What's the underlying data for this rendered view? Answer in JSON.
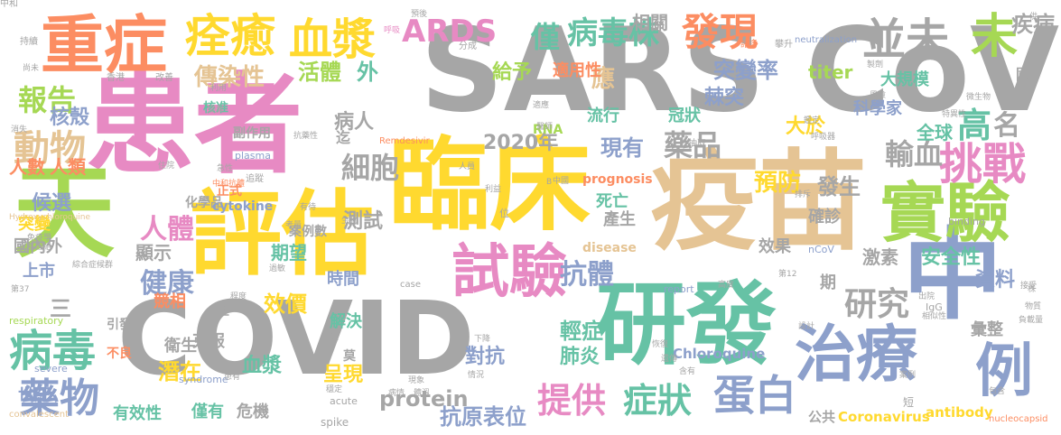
{
  "colors": {
    "gray": "#a6a6a6",
    "pink": "#e78ac3",
    "green": "#66c2a5",
    "blue": "#8da0cb",
    "yellow": "#ffd92f",
    "tan": "#e5c494",
    "lime": "#a6d854",
    "orange": "#fc8d62"
  },
  "words": [
    {
      "text": "SARS CoV",
      "color": "gray"
    },
    {
      "text": "患者",
      "color": "pink"
    },
    {
      "text": "疫苗",
      "color": "tan"
    },
    {
      "text": "臨床",
      "color": "yellow"
    },
    {
      "text": "COVID",
      "color": "gray"
    },
    {
      "text": "評估",
      "color": "yellow"
    },
    {
      "text": "研發",
      "color": "green"
    },
    {
      "text": "重症",
      "color": "orange"
    },
    {
      "text": "天",
      "color": "lime"
    },
    {
      "text": "中",
      "color": "blue"
    },
    {
      "text": "試驗",
      "color": "pink"
    },
    {
      "text": "治療",
      "color": "blue"
    },
    {
      "text": "實驗",
      "color": "lime"
    },
    {
      "text": "例",
      "color": "blue"
    },
    {
      "text": "痊癒",
      "color": "yellow"
    },
    {
      "text": "血漿",
      "color": "yellow"
    },
    {
      "text": "並未",
      "color": "gray"
    },
    {
      "text": "ARDS",
      "color": "pink"
    },
    {
      "text": "病毒株",
      "color": "green"
    },
    {
      "text": "發現",
      "color": "orange"
    },
    {
      "text": "未",
      "color": "lime"
    },
    {
      "text": "挑戰",
      "color": "pink"
    },
    {
      "text": "病毒",
      "color": "green"
    },
    {
      "text": "藥物",
      "color": "blue"
    },
    {
      "text": "提供",
      "color": "pink"
    },
    {
      "text": "症狀",
      "color": "green"
    },
    {
      "text": "蛋白",
      "color": "blue"
    },
    {
      "text": "報告",
      "color": "lime"
    },
    {
      "text": "動物",
      "color": "tan"
    },
    {
      "text": "人體",
      "color": "pink"
    },
    {
      "text": "健康",
      "color": "blue"
    },
    {
      "text": "抗體",
      "color": "blue"
    },
    {
      "text": "研究",
      "color": "gray"
    },
    {
      "text": "細胞",
      "color": "gray"
    },
    {
      "text": "藥品",
      "color": "gray"
    },
    {
      "text": "輸血",
      "color": "gray"
    },
    {
      "text": "預防",
      "color": "yellow"
    },
    {
      "text": "高",
      "color": "green"
    },
    {
      "text": "僅",
      "color": "green"
    },
    {
      "text": "傳染性",
      "color": "tan"
    },
    {
      "text": "活體",
      "color": "lime"
    },
    {
      "text": "外",
      "color": "green"
    },
    {
      "text": "給予",
      "color": "lime"
    },
    {
      "text": "相關",
      "color": "gray"
    },
    {
      "text": "titer",
      "color": "lime"
    },
    {
      "text": "疾病",
      "color": "gray"
    },
    {
      "text": "應",
      "color": "tan"
    },
    {
      "text": "突變率",
      "color": "blue"
    },
    {
      "text": "棘突",
      "color": "blue"
    },
    {
      "text": "大規模",
      "color": "green"
    },
    {
      "text": "科學家",
      "color": "blue"
    },
    {
      "text": "大於",
      "color": "yellow"
    },
    {
      "text": "名",
      "color": "gray"
    },
    {
      "text": "發生",
      "color": "gray"
    },
    {
      "text": "核殼",
      "color": "blue"
    },
    {
      "text": "2020年",
      "color": "gray"
    },
    {
      "text": "現有",
      "color": "blue"
    },
    {
      "text": "流行",
      "color": "green"
    },
    {
      "text": "冠狀",
      "color": "green"
    },
    {
      "text": "全球",
      "color": "green"
    },
    {
      "text": "病人",
      "color": "gray"
    },
    {
      "text": "人類",
      "color": "orange"
    },
    {
      "text": "人數",
      "color": "orange"
    },
    {
      "text": "候選",
      "color": "blue"
    },
    {
      "text": "突變",
      "color": "yellow"
    },
    {
      "text": "測試",
      "color": "gray"
    },
    {
      "text": "確診",
      "color": "gray"
    },
    {
      "text": "死亡",
      "color": "green"
    },
    {
      "text": "安全性",
      "color": "green"
    },
    {
      "text": "資料",
      "color": "blue"
    },
    {
      "text": "激素",
      "color": "gray"
    },
    {
      "text": "效果",
      "color": "gray"
    },
    {
      "text": "時間",
      "color": "blue"
    },
    {
      "text": "期望",
      "color": "green"
    },
    {
      "text": "效價",
      "color": "yellow"
    },
    {
      "text": "顯示",
      "color": "gray"
    },
    {
      "text": "競相",
      "color": "orange"
    },
    {
      "text": "上市",
      "color": "blue"
    },
    {
      "text": "國內外",
      "color": "gray"
    },
    {
      "text": "三",
      "color": "gray"
    },
    {
      "text": "解決",
      "color": "green"
    },
    {
      "text": "輕症",
      "color": "green"
    },
    {
      "text": "對抗",
      "color": "blue"
    },
    {
      "text": "肺炎",
      "color": "green"
    },
    {
      "text": "潛在",
      "color": "yellow"
    },
    {
      "text": "衛生",
      "color": "gray"
    },
    {
      "text": "克服",
      "color": "gray"
    },
    {
      "text": "呈現",
      "color": "yellow"
    },
    {
      "text": "血漿",
      "color": "green"
    },
    {
      "text": "protein",
      "color": "gray"
    },
    {
      "text": "抗原表位",
      "color": "blue"
    },
    {
      "text": "有效性",
      "color": "green"
    },
    {
      "text": "僅有",
      "color": "green"
    },
    {
      "text": "危機",
      "color": "gray"
    },
    {
      "text": "世紀",
      "color": "blue"
    },
    {
      "text": "Coronavirus",
      "color": "yellow"
    },
    {
      "text": "antibody",
      "color": "yellow"
    },
    {
      "text": "公共",
      "color": "gray"
    },
    {
      "text": "彙整",
      "color": "gray"
    },
    {
      "text": "Chloroquine",
      "color": "blue"
    },
    {
      "text": "化學品",
      "color": "gray"
    },
    {
      "text": "cytokine",
      "color": "blue"
    },
    {
      "text": "正式",
      "color": "orange"
    },
    {
      "text": "副作用",
      "color": "gray"
    },
    {
      "text": "核准",
      "color": "green"
    },
    {
      "text": "Remdesivir",
      "color": "orange"
    },
    {
      "text": "plasma",
      "color": "blue"
    },
    {
      "text": "prognosis",
      "color": "orange"
    },
    {
      "text": "disease",
      "color": "tan"
    },
    {
      "text": "nCoV",
      "color": "blue"
    },
    {
      "text": "report",
      "color": "blue"
    },
    {
      "text": "syndrome",
      "color": "blue"
    },
    {
      "text": "acute",
      "color": "gray"
    },
    {
      "text": "binding",
      "color": "gray"
    },
    {
      "text": "IgG",
      "color": "gray"
    },
    {
      "text": "case",
      "color": "gray"
    },
    {
      "text": "spike",
      "color": "gray"
    },
    {
      "text": "severe",
      "color": "blue"
    },
    {
      "text": "convalescent",
      "color": "tan"
    },
    {
      "text": "Hydroxychloroquine",
      "color": "tan"
    },
    {
      "text": "nucleocapsid",
      "color": "orange"
    },
    {
      "text": "neutralization",
      "color": "blue"
    },
    {
      "text": "respiratory",
      "color": "lime"
    },
    {
      "text": "RNA",
      "color": "lime"
    },
    {
      "text": "引發",
      "color": "gray"
    },
    {
      "text": "不良",
      "color": "orange"
    },
    {
      "text": "程度",
      "color": "gray"
    },
    {
      "text": "抽取",
      "color": "gray"
    },
    {
      "text": "分成",
      "color": "gray"
    },
    {
      "text": "適用性",
      "color": "orange"
    },
    {
      "text": "諸多",
      "color": "orange"
    },
    {
      "text": "攀升",
      "color": "gray"
    },
    {
      "text": "國",
      "color": "gray"
    },
    {
      "text": "供",
      "color": "gray"
    },
    {
      "text": "預後",
      "color": "gray"
    },
    {
      "text": "呼吸",
      "color": "pink"
    },
    {
      "text": "持續",
      "color": "gray"
    },
    {
      "text": "尚未",
      "color": "gray"
    },
    {
      "text": "消失",
      "color": "gray"
    },
    {
      "text": "住院",
      "color": "gray"
    },
    {
      "text": "香港",
      "color": "gray"
    },
    {
      "text": "改善",
      "color": "gray"
    },
    {
      "text": "利用",
      "color": "gray"
    },
    {
      "text": "變異",
      "color": "gray"
    },
    {
      "text": "抗藥性",
      "color": "gray"
    },
    {
      "text": "急性",
      "color": "gray"
    },
    {
      "text": "追蹤",
      "color": "gray"
    },
    {
      "text": "中和抗體",
      "color": "orange"
    },
    {
      "text": "案例數",
      "color": "gray"
    },
    {
      "text": "有待",
      "color": "gray"
    },
    {
      "text": "生物",
      "color": "gray"
    },
    {
      "text": "考量",
      "color": "gray"
    },
    {
      "text": "過敏",
      "color": "gray"
    },
    {
      "text": "綜合症候群",
      "color": "gray"
    },
    {
      "text": "免疫學",
      "color": "gray"
    },
    {
      "text": "基因組",
      "color": "gray"
    },
    {
      "text": "第37",
      "color": "gray"
    },
    {
      "text": "下降",
      "color": "gray"
    },
    {
      "text": "情況",
      "color": "gray"
    },
    {
      "text": "穩定",
      "color": "gray"
    },
    {
      "text": "患有",
      "color": "gray"
    },
    {
      "text": "現象",
      "color": "gray"
    },
    {
      "text": "病情",
      "color": "gray"
    },
    {
      "text": "體溫",
      "color": "gray"
    },
    {
      "text": "恢復",
      "color": "gray"
    },
    {
      "text": "遺傳",
      "color": "gray"
    },
    {
      "text": "含有",
      "color": "gray"
    },
    {
      "text": "案例",
      "color": "gray"
    },
    {
      "text": "包含",
      "color": "gray"
    },
    {
      "text": "負載量",
      "color": "gray"
    },
    {
      "text": "物質",
      "color": "gray"
    },
    {
      "text": "接受",
      "color": "gray"
    },
    {
      "text": "相似性",
      "color": "gray"
    },
    {
      "text": "出院",
      "color": "gray"
    },
    {
      "text": "設計",
      "color": "gray"
    },
    {
      "text": "第12",
      "color": "gray"
    },
    {
      "text": "高度",
      "color": "gray"
    },
    {
      "text": "排斥",
      "color": "gray"
    },
    {
      "text": "呼吸器",
      "color": "gray"
    },
    {
      "text": "鑑定",
      "color": "gray"
    },
    {
      "text": "中國",
      "color": "gray"
    },
    {
      "text": "醫師",
      "color": "gray"
    },
    {
      "text": "風險",
      "color": "gray"
    },
    {
      "text": "製劑",
      "color": "gray"
    },
    {
      "text": "人員",
      "color": "gray"
    },
    {
      "text": "利益",
      "color": "gray"
    },
    {
      "text": "特異性",
      "color": "gray"
    },
    {
      "text": "微生物",
      "color": "gray"
    },
    {
      "text": "適應",
      "color": "gray"
    },
    {
      "text": "產生",
      "color": "gray"
    },
    {
      "text": "迄",
      "color": "gray"
    },
    {
      "text": "莫",
      "color": "gray"
    },
    {
      "text": "正",
      "color": "gray"
    },
    {
      "text": "期",
      "color": "gray"
    },
    {
      "text": "短",
      "color": "gray"
    },
    {
      "text": "位",
      "color": "gray"
    },
    {
      "text": "組",
      "color": "gray"
    },
    {
      "text": "B",
      "color": "gray"
    },
    {
      "text": "株",
      "color": "gray"
    },
    {
      "text": "中和",
      "color": "gray"
    }
  ]
}
